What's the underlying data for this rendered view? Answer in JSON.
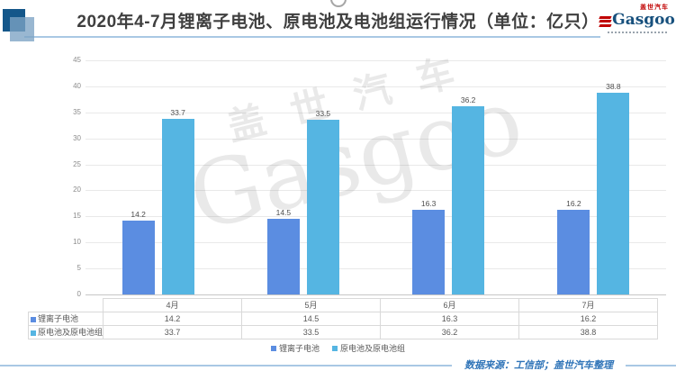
{
  "page": {
    "title": "2020年4-7月锂离子电池、原电池及电池组运行情况（单位：亿只）",
    "source_note": "数据来源：工信部；盖世汽车整理"
  },
  "logo": {
    "brand_cn": "盖世汽车",
    "brand_en": "Gasgoo"
  },
  "watermark": {
    "line1": "盖世汽车",
    "line2": "Gasgoo"
  },
  "chart_data": {
    "type": "bar",
    "title": "2020年4-7月锂离子电池、原电池及电池组运行情况（单位：亿只）",
    "unit": "亿只",
    "categories": [
      "4月",
      "5月",
      "6月",
      "7月"
    ],
    "series": [
      {
        "name": "锂离子电池",
        "color": "#5B8DE1",
        "values": [
          14.2,
          14.5,
          16.3,
          16.2
        ]
      },
      {
        "name": "原电池及原电池组",
        "color": "#55B5E2",
        "values": [
          33.7,
          33.5,
          36.2,
          38.8
        ]
      }
    ],
    "ylim": [
      0,
      45
    ],
    "ytick_step": 5,
    "grid": true,
    "legend_position": "bottom",
    "data_table_shown": true
  }
}
